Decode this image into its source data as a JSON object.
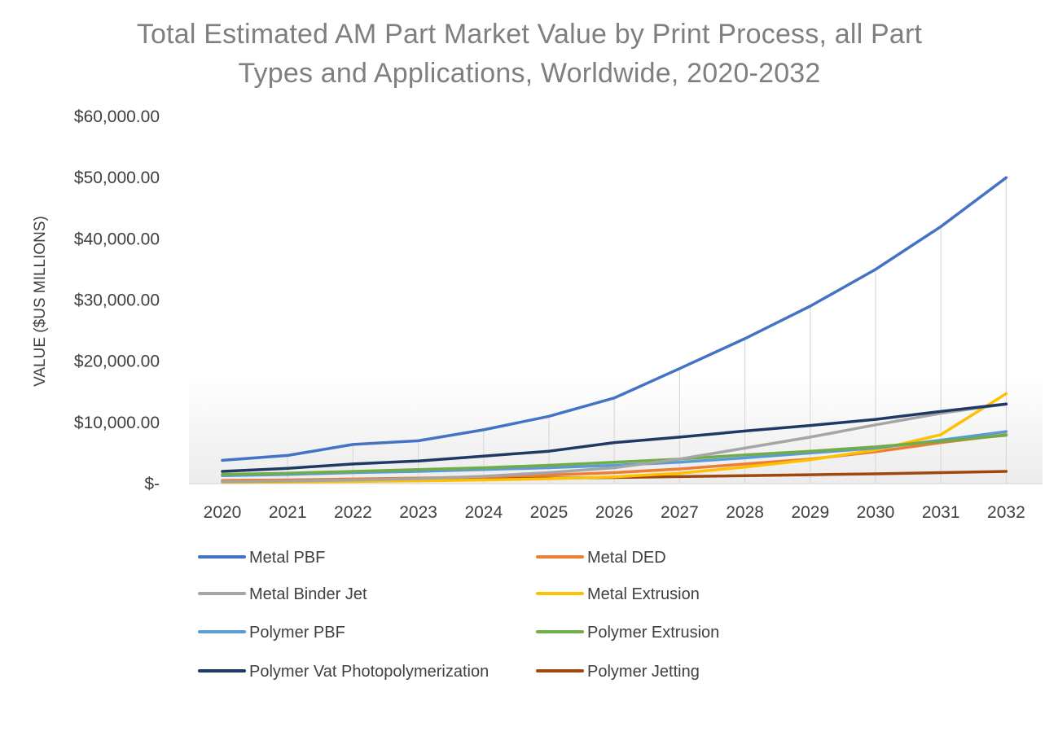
{
  "chart_data": {
    "type": "line",
    "title_lines": [
      "Total Estimated AM Part Market Value by Print Process, all Part",
      "Types and Applications, Worldwide, 2020-2032"
    ],
    "xlabel": "",
    "ylabel": "VALUE ($US MILLIONS)",
    "ylim": [
      0,
      60000
    ],
    "y_ticks": [
      0,
      10000,
      20000,
      30000,
      40000,
      50000,
      60000
    ],
    "y_tick_labels": [
      "$-",
      "$10,000.00",
      "$20,000.00",
      "$30,000.00",
      "$40,000.00",
      "$50,000.00",
      "$60,000.00"
    ],
    "grid": "vertical",
    "legend_position": "bottom",
    "categories": [
      "2020",
      "2021",
      "2022",
      "2023",
      "2024",
      "2025",
      "2026",
      "2027",
      "2028",
      "2029",
      "2030",
      "2031",
      "2032"
    ],
    "series": [
      {
        "name": "Metal PBF",
        "color": "#4472c4",
        "values": [
          3800,
          4600,
          6400,
          7000,
          8800,
          11000,
          14000,
          18800,
          23700,
          29000,
          35000,
          42000,
          50000
        ]
      },
      {
        "name": "Metal DED",
        "color": "#ed7d31",
        "values": [
          500,
          600,
          750,
          900,
          1100,
          1400,
          1800,
          2400,
          3200,
          4000,
          5200,
          6700,
          8000
        ]
      },
      {
        "name": "Metal Binder Jet",
        "color": "#a5a5a5",
        "values": [
          300,
          400,
          600,
          800,
          1200,
          1800,
          2600,
          4000,
          5800,
          7600,
          9600,
          11500,
          13000
        ]
      },
      {
        "name": "Metal Extrusion",
        "color": "#ffc000",
        "values": [
          200,
          250,
          350,
          450,
          600,
          800,
          1100,
          1700,
          2700,
          3900,
          5500,
          8000,
          14700
        ]
      },
      {
        "name": "Polymer PBF",
        "color": "#5b9bd5",
        "values": [
          1300,
          1500,
          1800,
          2000,
          2300,
          2600,
          3000,
          3500,
          4200,
          5000,
          5800,
          7100,
          8500
        ]
      },
      {
        "name": "Polymer Extrusion",
        "color": "#70ad47",
        "values": [
          1500,
          1700,
          2000,
          2300,
          2600,
          3000,
          3500,
          4000,
          4700,
          5300,
          6000,
          6900,
          7900
        ]
      },
      {
        "name": "Polymer Vat Photopolymerization",
        "color": "#1f3864",
        "values": [
          2000,
          2500,
          3200,
          3700,
          4500,
          5300,
          6700,
          7600,
          8600,
          9500,
          10500,
          11800,
          13000
        ]
      },
      {
        "name": "Polymer Jetting",
        "color": "#9e480e",
        "values": [
          500,
          560,
          620,
          700,
          800,
          900,
          1000,
          1150,
          1300,
          1450,
          1600,
          1800,
          2000
        ]
      }
    ]
  }
}
